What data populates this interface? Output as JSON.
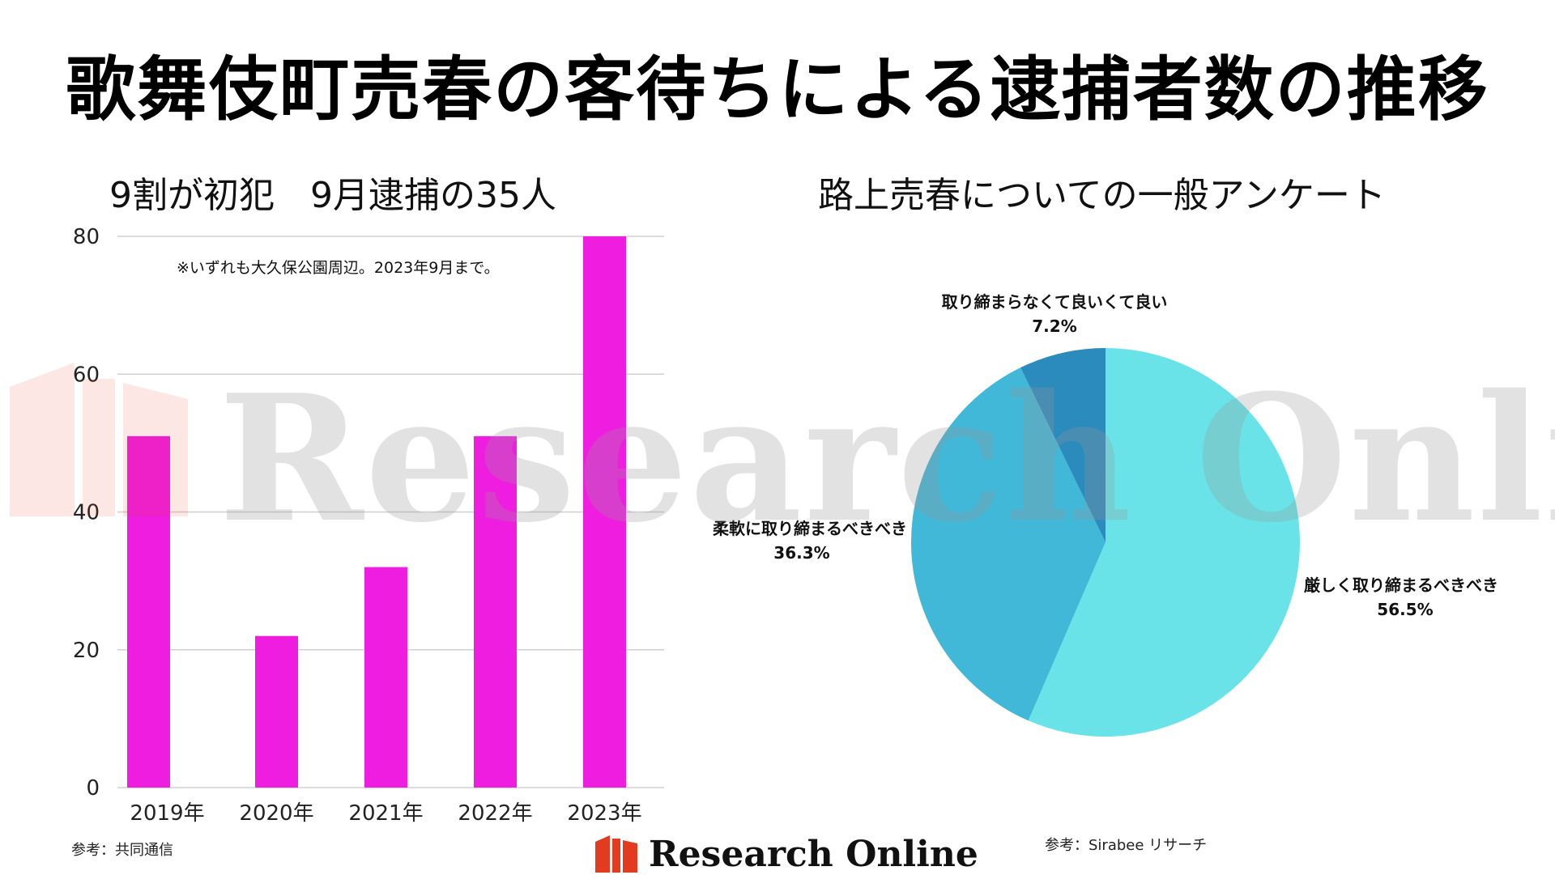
{
  "title": "歌舞伎町売春の客待ちによる逮捕者数の推移",
  "watermark": "Research Online",
  "brand": {
    "name": "Research Online",
    "accent": "#e33b1f"
  },
  "sources": {
    "left": "参考：共同通信",
    "right": "参考：Sirabee リサーチ"
  },
  "chart_data": [
    {
      "type": "bar",
      "title": "9割が初犯　9月逮捕の35人",
      "annotation": "※いずれも大久保公園周辺。2023年9月まで。",
      "categories": [
        "2019年",
        "2020年",
        "2021年",
        "2022年",
        "2023年"
      ],
      "values": [
        51,
        22,
        32,
        51,
        80
      ],
      "ylim": [
        0,
        80
      ],
      "yticks": [
        "0",
        "20",
        "40",
        "60",
        "80"
      ],
      "color": "#ef1ddf",
      "grid": true
    },
    {
      "type": "pie",
      "title": "路上売春についての一般アンケート",
      "slices": [
        {
          "label": "厳しく取り締まるべきべき",
          "value": 56.5,
          "display": "56.5%",
          "color": "#6ae3e8"
        },
        {
          "label": "柔軟に取り締まるべきべき",
          "value": 36.3,
          "display": "36.3%",
          "color": "#42b8d8"
        },
        {
          "label": "取り締まらなくて良いくて良い",
          "value": 7.2,
          "display": "7.2%",
          "color": "#2b8bbd"
        }
      ]
    }
  ]
}
